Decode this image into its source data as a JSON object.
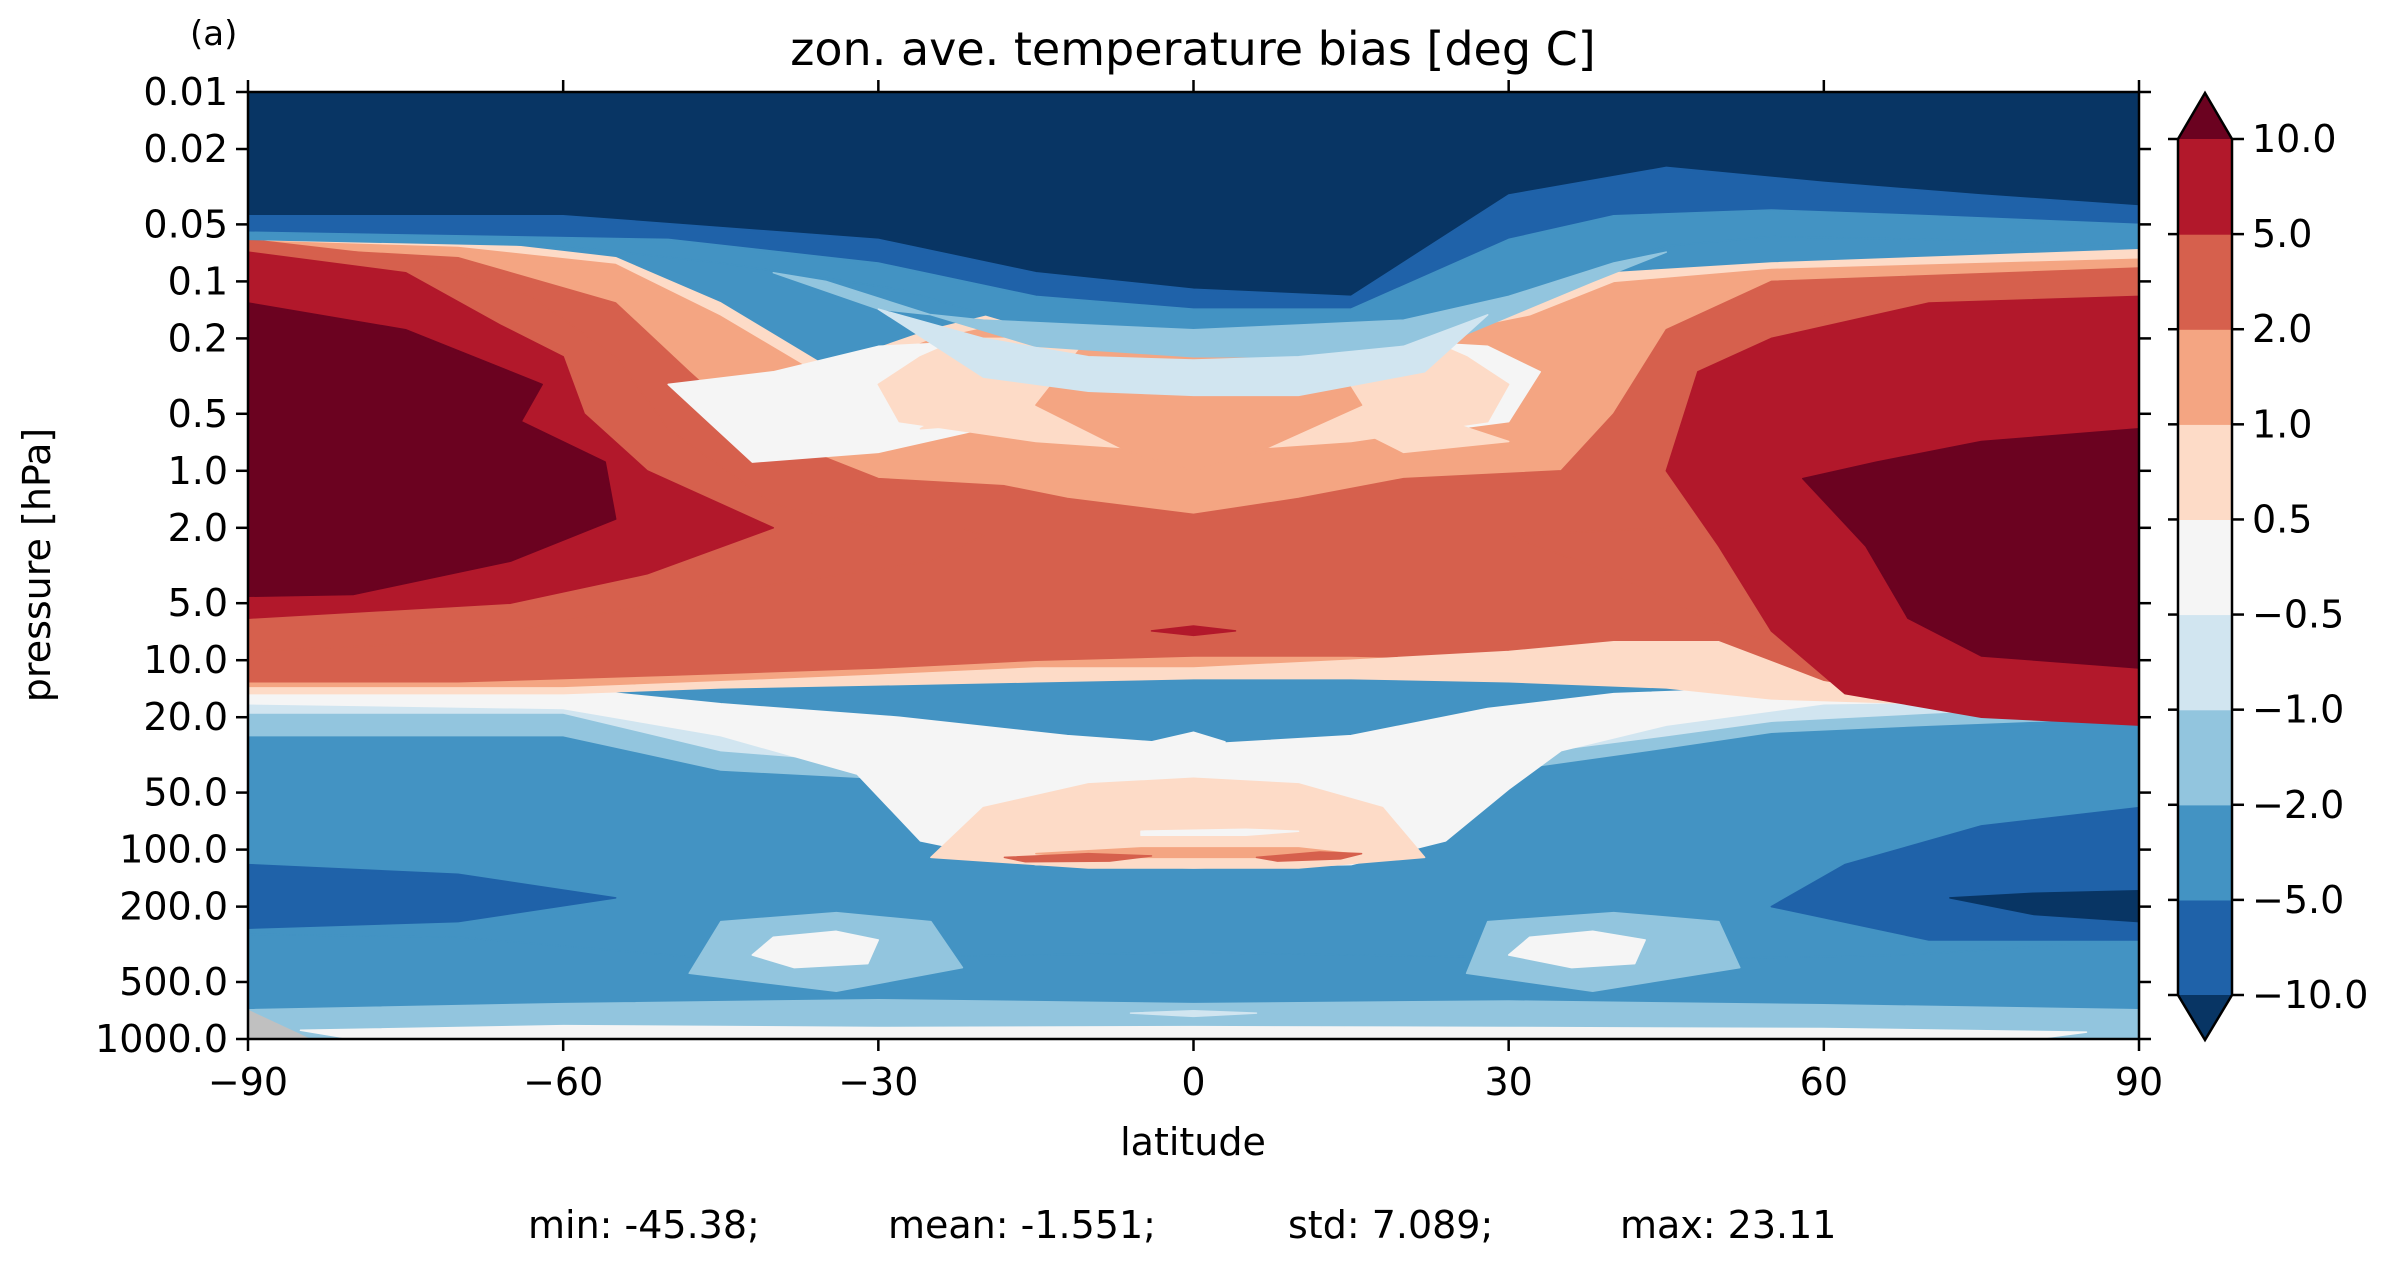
{
  "panel_label": "(a)",
  "stats_line": {
    "min": "min: -45.38;",
    "mean": "mean: -1.551;",
    "std": "std: 7.089;",
    "max": "max: 23.11"
  },
  "chart_data": {
    "type": "heatmap",
    "subtype": "filled-contour",
    "title": "zon. ave. temperature bias [deg C]",
    "xlabel": "latitude",
    "ylabel": "pressure [hPa]",
    "xlim": [
      -90,
      90
    ],
    "ylim": [
      1000.0,
      0.01
    ],
    "y_scale": "log",
    "y_inverted": true,
    "x_ticks": [
      {
        "value": -90,
        "label": "−90"
      },
      {
        "value": -60,
        "label": "−60"
      },
      {
        "value": -30,
        "label": "−30"
      },
      {
        "value": 0,
        "label": "0"
      },
      {
        "value": 30,
        "label": "30"
      },
      {
        "value": 60,
        "label": "60"
      },
      {
        "value": 90,
        "label": "90"
      }
    ],
    "y_ticks": [
      {
        "value": 0.01,
        "label": "0.01"
      },
      {
        "value": 0.02,
        "label": "0.02"
      },
      {
        "value": 0.05,
        "label": "0.05"
      },
      {
        "value": 0.1,
        "label": "0.1"
      },
      {
        "value": 0.2,
        "label": "0.2"
      },
      {
        "value": 0.5,
        "label": "0.5"
      },
      {
        "value": 1.0,
        "label": "1.0"
      },
      {
        "value": 2.0,
        "label": "2.0"
      },
      {
        "value": 5.0,
        "label": "5.0"
      },
      {
        "value": 10.0,
        "label": "10.0"
      },
      {
        "value": 20.0,
        "label": "20.0"
      },
      {
        "value": 50.0,
        "label": "50.0"
      },
      {
        "value": 100.0,
        "label": "100.0"
      },
      {
        "value": 200.0,
        "label": "200.0"
      },
      {
        "value": 500.0,
        "label": "500.0"
      },
      {
        "value": 1000.0,
        "label": "1000.0"
      }
    ],
    "colorbar": {
      "levels": [
        -10.0,
        -5.0,
        -2.0,
        -1.0,
        -0.5,
        0.5,
        1.0,
        2.0,
        5.0,
        10.0
      ],
      "labels": [
        "−10.0",
        "−5.0",
        "−2.0",
        "−1.0",
        "−0.5",
        "0.5",
        "1.0",
        "2.0",
        "5.0",
        "10.0"
      ],
      "colors": [
        "#1f62a9",
        "#4393c3",
        "#92c5de",
        "#d1e5f0",
        "#f5f5f5",
        "#fddbc7",
        "#f4a582",
        "#d6604d",
        "#b2182b"
      ],
      "under_color": "#083564",
      "over_color": "#6b0220",
      "extend": "both"
    },
    "approx_bias_fields": [
      {
        "value_class": "-10",
        "lat": [
          -90,
          90
        ],
        "p": [
          0.01,
          0.04
        ]
      },
      {
        "value_class": ">10",
        "lat": [
          -90,
          -56
        ],
        "p": [
          0.13,
          4.6
        ]
      },
      {
        "value_class": ">10",
        "lat": [
          68,
          90
        ],
        "p": [
          0.6,
          11.0
        ]
      },
      {
        "value_class": "5..10",
        "lat": [
          -90,
          -47
        ],
        "p": [
          0.07,
          9.0
        ]
      },
      {
        "value_class": "5..10",
        "lat": [
          55,
          90
        ],
        "p": [
          0.1,
          20.0
        ]
      },
      {
        "value_class": "1..2",
        "lat": [
          -18,
          18
        ],
        "p": [
          0.3,
          9.0
        ]
      },
      {
        "value_class": "-0.5..0.5",
        "lat": [
          -45,
          45
        ],
        "p": [
          15.0,
          120.0
        ]
      },
      {
        "value_class": "0.5..1",
        "lat": [
          -26,
          22
        ],
        "p": [
          40.0,
          120.0
        ]
      },
      {
        "value_class": "-5..-2",
        "lat": [
          -90,
          90
        ],
        "p": [
          25.0,
          1000.0
        ]
      },
      {
        "value_class": "-10..-5",
        "lat": [
          -90,
          -55
        ],
        "p": [
          120.0,
          280.0
        ]
      },
      {
        "value_class": "-10..-5",
        "lat": [
          55,
          90
        ],
        "p": [
          60.0,
          300.0
        ]
      },
      {
        "value_class": "-0.5..0.5",
        "lat": [
          -40,
          -30
        ],
        "p": [
          290.0,
          420.0
        ]
      },
      {
        "value_class": "-0.5..0.5",
        "lat": [
          30,
          42
        ],
        "p": [
          290.0,
          420.0
        ]
      }
    ]
  }
}
